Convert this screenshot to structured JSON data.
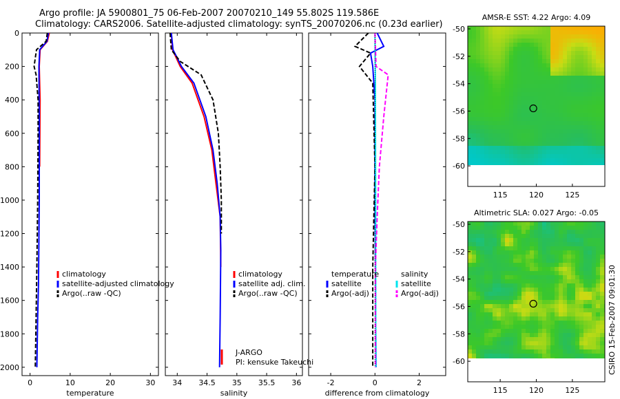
{
  "header": {
    "line1": "Argo profile: JA 5900801_75 06-Feb-2007 20070210_149 55.802S 119.586E",
    "line2": "Climatology: CARS2006. Satellite-adjusted climatology: synTS_20070206.nc (0.23d earlier)"
  },
  "side_label": "CSIRO 15-Feb-2007 09:01:30",
  "colors": {
    "red": "#ff0000",
    "blue": "#0000ff",
    "black": "#000000",
    "cyan": "#00e5ee",
    "magenta": "#ff00ff"
  },
  "chart_data": [
    {
      "type": "line",
      "title": "",
      "xlabel": "temperature",
      "ylabel": "",
      "xlim": [
        -2,
        32
      ],
      "ylim": [
        2050,
        0
      ],
      "xticks": [
        "0",
        "10",
        "20",
        "30"
      ],
      "yticks": [
        "0",
        "200",
        "400",
        "600",
        "800",
        "1000",
        "1200",
        "1400",
        "1600",
        "1800",
        "2000"
      ],
      "series": [
        {
          "name": "climatology",
          "color": "red",
          "dash": "",
          "points": [
            [
              4.8,
              0
            ],
            [
              4.3,
              50
            ],
            [
              2.5,
              100
            ],
            [
              2.3,
              200
            ],
            [
              2.5,
              400
            ],
            [
              2.4,
              800
            ]
          ]
        },
        {
          "name": "satellite-adjusted climatology",
          "color": "blue",
          "dash": "",
          "points": [
            [
              4.6,
              0
            ],
            [
              4.2,
              50
            ],
            [
              2.4,
              100
            ],
            [
              2.2,
              200
            ],
            [
              2.3,
              500
            ],
            [
              2.3,
              1000
            ],
            [
              2.1,
              1500
            ],
            [
              1.9,
              1700
            ],
            [
              1.7,
              2000
            ]
          ]
        },
        {
          "name": "Argo(..raw -QC)",
          "color": "black",
          "dash": "6,3",
          "points": [
            [
              4.3,
              0
            ],
            [
              4.0,
              50
            ],
            [
              1.6,
              100
            ],
            [
              1.3,
              150
            ],
            [
              1.0,
              200
            ],
            [
              1.5,
              250
            ],
            [
              2.0,
              400
            ],
            [
              2.0,
              600
            ],
            [
              1.9,
              1000
            ],
            [
              1.7,
              1400
            ],
            [
              1.5,
              1700
            ],
            [
              1.3,
              2000
            ]
          ]
        }
      ],
      "legend": [
        "climatology",
        "satellite-adjusted climatology",
        "Argo(..raw -QC)"
      ]
    },
    {
      "type": "line",
      "title": "",
      "xlabel": "salinity",
      "ylabel": "",
      "xlim": [
        33.8,
        36.1
      ],
      "ylim": [
        2050,
        0
      ],
      "xticks": [
        "34",
        "34.5",
        "35",
        "35.5",
        "36"
      ],
      "yticks": [],
      "series": [
        {
          "name": "climatology",
          "color": "red",
          "dash": "",
          "points": [
            [
              33.9,
              0
            ],
            [
              33.92,
              100
            ],
            [
              34.05,
              200
            ],
            [
              34.25,
              300
            ],
            [
              34.45,
              500
            ],
            [
              34.58,
              700
            ],
            [
              34.65,
              900
            ],
            [
              34.72,
              1100
            ],
            [
              34.73,
              1400
            ]
          ]
        },
        {
          "name": "satellite adj. clim.",
          "color": "blue",
          "dash": "",
          "points": [
            [
              33.9,
              0
            ],
            [
              33.93,
              100
            ],
            [
              34.07,
              200
            ],
            [
              34.28,
              300
            ],
            [
              34.48,
              500
            ],
            [
              34.6,
              700
            ],
            [
              34.67,
              900
            ],
            [
              34.72,
              1100
            ],
            [
              34.73,
              1300
            ],
            [
              34.72,
              1700
            ],
            [
              34.71,
              2000
            ]
          ]
        },
        {
          "name": "Argo(..raw -QC)",
          "color": "black",
          "dash": "6,3",
          "points": [
            [
              33.88,
              0
            ],
            [
              33.9,
              100
            ],
            [
              34.05,
              170
            ],
            [
              34.4,
              250
            ],
            [
              34.6,
              400
            ],
            [
              34.69,
              600
            ],
            [
              34.72,
              800
            ],
            [
              34.74,
              1000
            ],
            [
              34.74,
              1200
            ]
          ]
        }
      ],
      "legend": [
        "climatology",
        "satellite adj. clim.",
        "Argo(..raw -QC)"
      ],
      "annotations": [
        "J-ARGO",
        "PI: kensuke Takeuchi"
      ]
    },
    {
      "type": "line",
      "title": "",
      "xlabel": "difference from climatology",
      "ylabel": "",
      "xlim": [
        -3,
        3.2
      ],
      "ylim": [
        2050,
        0
      ],
      "xticks": [
        "-2",
        "0",
        "2"
      ],
      "yticks": [],
      "series": [
        {
          "name": "temperature satellite",
          "color": "blue",
          "dash": "",
          "points": [
            [
              0.1,
              0
            ],
            [
              0.4,
              80
            ],
            [
              -0.2,
              120
            ],
            [
              -0.1,
              200
            ],
            [
              0,
              400
            ],
            [
              0,
              1000
            ],
            [
              0.05,
              2000
            ]
          ]
        },
        {
          "name": "temperature Argo(-adj)",
          "color": "black",
          "dash": "6,3",
          "points": [
            [
              -0.3,
              0
            ],
            [
              -0.9,
              80
            ],
            [
              -0.2,
              120
            ],
            [
              -0.7,
              200
            ],
            [
              -0.1,
              300
            ],
            [
              0,
              800
            ],
            [
              -0.1,
              1400
            ],
            [
              -0.1,
              2000
            ]
          ]
        },
        {
          "name": "salinity satellite",
          "color": "cyan",
          "dash": "",
          "points": [
            [
              0,
              0
            ],
            [
              0.02,
              300
            ],
            [
              0.03,
              1000
            ],
            [
              0.04,
              2000
            ]
          ]
        },
        {
          "name": "salinity Argo(-adj)",
          "color": "magenta",
          "dash": "6,3",
          "points": [
            [
              0,
              0
            ],
            [
              0.05,
              200
            ],
            [
              0.6,
              250
            ],
            [
              0.4,
              500
            ],
            [
              0.2,
              800
            ],
            [
              0.1,
              1100
            ],
            [
              0.02,
              1400
            ],
            [
              0.02,
              2000
            ]
          ]
        }
      ],
      "legend_titles": [
        "temperature",
        "salinity"
      ],
      "legend": [
        "satellite",
        "Argo(-adj)",
        "satellite",
        "Argo(-adj)"
      ]
    },
    {
      "type": "heatmap",
      "title": "AMSR-E SST: 4.22 Argo: 4.09",
      "xlim": [
        110.5,
        129.5
      ],
      "ylim": [
        -61.5,
        -49.8
      ],
      "xticks": [
        "115",
        "120",
        "125"
      ],
      "yticks": [
        "-50",
        "-52",
        "-54",
        "-56",
        "-58",
        "-60"
      ],
      "data_extent_lat": [
        -60,
        -49.8
      ],
      "marker": {
        "lon": 119.586,
        "lat": -55.802
      }
    },
    {
      "type": "heatmap",
      "title": "Altimetric SLA: 0.027 Argo: -0.05",
      "xlim": [
        110.5,
        129.5
      ],
      "ylim": [
        -61.5,
        -49.8
      ],
      "xticks": [
        "115",
        "120",
        "125"
      ],
      "yticks": [
        "-50",
        "-52",
        "-54",
        "-56",
        "-58",
        "-60"
      ],
      "data_extent_lat": [
        -60,
        -49.8
      ],
      "marker": {
        "lon": 119.586,
        "lat": -55.802
      }
    }
  ]
}
